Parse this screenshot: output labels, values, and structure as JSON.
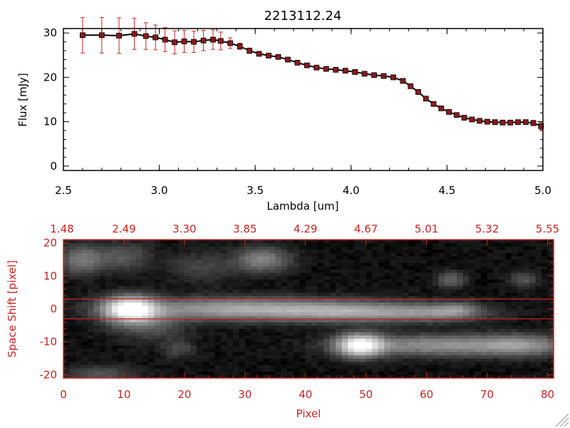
{
  "top_chart": {
    "title": "2213112.24",
    "xlabel": "Lambda [um]",
    "ylabel": "Flux [mJy]",
    "xlim": [
      2.5,
      5.0
    ],
    "ylim": [
      -1,
      31
    ],
    "xticks": [
      "2.5",
      "3.0",
      "3.5",
      "4.0",
      "4.5",
      "5.0"
    ],
    "xtick_values": [
      2.5,
      3.0,
      3.5,
      4.0,
      4.5,
      5.0
    ],
    "yticks": [
      "0",
      "10",
      "20",
      "30"
    ],
    "ytick_values": [
      0,
      10,
      20,
      30
    ],
    "line_color": "#000000",
    "marker_color": "#8b1a1a",
    "errorbar_color": "#cc2222"
  },
  "bottom_chart": {
    "xlabel": "Pixel",
    "ylabel": "Space Shift [pixel]",
    "xlim": [
      0,
      81
    ],
    "ylim": [
      -21,
      21
    ],
    "xticks": [
      "0",
      "10",
      "20",
      "30",
      "40",
      "50",
      "60",
      "70",
      "80"
    ],
    "xtick_values": [
      0,
      10,
      20,
      30,
      40,
      50,
      60,
      70,
      80
    ],
    "yticks": [
      "20",
      "10",
      "0",
      "-10",
      "-20"
    ],
    "ytick_values": [
      20,
      10,
      0,
      -10,
      -20
    ],
    "top_wavelength_ticks": [
      "1.48",
      "2.49",
      "3.30",
      "3.85",
      "4.29",
      "4.67",
      "5.01",
      "5.32",
      "5.55"
    ],
    "extraction_window": [
      -3,
      3
    ],
    "axis_color": "#cc2222"
  },
  "chart_data": [
    {
      "type": "line",
      "title": "2213112.24",
      "xlabel": "Lambda [um]",
      "ylabel": "Flux [mJy]",
      "xlim": [
        2.5,
        5.0
      ],
      "ylim": [
        -1,
        31
      ],
      "series": [
        {
          "x": [
            2.6,
            2.7,
            2.79,
            2.87,
            2.93,
            2.98,
            3.03,
            3.08,
            3.13,
            3.18,
            3.23,
            3.28,
            3.32,
            3.37,
            3.42,
            3.47,
            3.52,
            3.57,
            3.62,
            3.67,
            3.72,
            3.77,
            3.82,
            3.87,
            3.92,
            3.97,
            4.02,
            4.07,
            4.12,
            4.17,
            4.22,
            4.27,
            4.31,
            4.35,
            4.39,
            4.43,
            4.47,
            4.51,
            4.55,
            4.59,
            4.63,
            4.67,
            4.71,
            4.75,
            4.79,
            4.83,
            4.87,
            4.91,
            4.95,
            4.99
          ],
          "y": [
            29.5,
            29.5,
            29.4,
            29.8,
            29.3,
            29.0,
            28.5,
            27.9,
            28.1,
            28.0,
            28.3,
            28.5,
            28.2,
            27.7,
            27.0,
            26.0,
            25.3,
            24.9,
            24.6,
            24.0,
            23.3,
            22.7,
            22.2,
            21.9,
            21.7,
            21.5,
            21.2,
            20.8,
            20.5,
            20.3,
            20.0,
            19.2,
            18.0,
            16.7,
            15.2,
            14.0,
            13.0,
            12.2,
            11.5,
            10.9,
            10.5,
            10.2,
            10.0,
            9.9,
            9.8,
            9.8,
            9.9,
            9.9,
            9.7,
            9.0
          ],
          "yerr": [
            4.0,
            4.0,
            4.0,
            3.5,
            3.0,
            2.8,
            2.7,
            2.6,
            2.5,
            2.4,
            2.3,
            2.2,
            2.0,
            1.2,
            0.7,
            0.6,
            0.5,
            0.5,
            0.5,
            0.5,
            0.5,
            0.5,
            0.5,
            0.5,
            0.5,
            0.5,
            0.5,
            0.5,
            0.5,
            0.5,
            0.5,
            0.5,
            0.5,
            0.5,
            0.5,
            0.5,
            0.5,
            0.5,
            0.5,
            0.5,
            0.5,
            0.5,
            0.5,
            0.5,
            0.5,
            0.5,
            0.5,
            0.5,
            0.6,
            0.8
          ]
        }
      ]
    },
    {
      "type": "heatmap",
      "xlabel": "Pixel",
      "ylabel": "Space Shift [pixel]",
      "xlim": [
        0,
        81
      ],
      "ylim": [
        -21,
        21
      ],
      "extraction_window": [
        -3,
        3
      ],
      "sources": [
        {
          "x": 11,
          "y": 0,
          "peak": 1.0,
          "sx": 3.0,
          "sy": 2.6
        },
        {
          "x": 30,
          "y": 0,
          "peak": 0.55,
          "sx": 13,
          "sy": 2.3
        },
        {
          "x": 50,
          "y": -1,
          "peak": 0.42,
          "sx": 9,
          "sy": 2.0
        },
        {
          "x": 63,
          "y": -1,
          "peak": 0.28,
          "sx": 5,
          "sy": 1.8
        },
        {
          "x": 49,
          "y": -11,
          "peak": 0.9,
          "sx": 2.6,
          "sy": 2.4
        },
        {
          "x": 62,
          "y": -11,
          "peak": 0.45,
          "sx": 10,
          "sy": 2.2
        },
        {
          "x": 76,
          "y": -11,
          "peak": 0.35,
          "sx": 5,
          "sy": 2.2
        },
        {
          "x": 3,
          "y": 15,
          "peak": 0.35,
          "sx": 2.5,
          "sy": 3
        },
        {
          "x": 10,
          "y": 16,
          "peak": 0.22,
          "sx": 3,
          "sy": 3
        },
        {
          "x": 33,
          "y": 15,
          "peak": 0.4,
          "sx": 3,
          "sy": 2.5
        },
        {
          "x": 23,
          "y": 13,
          "peak": 0.15,
          "sx": 4,
          "sy": 3
        },
        {
          "x": 64,
          "y": 9,
          "peak": 0.28,
          "sx": 1.6,
          "sy": 1.6
        },
        {
          "x": 76,
          "y": 9,
          "peak": 0.22,
          "sx": 1.6,
          "sy": 1.6
        },
        {
          "x": 14,
          "y": -5,
          "peak": 0.22,
          "sx": 4,
          "sy": 3
        },
        {
          "x": 19,
          "y": -12,
          "peak": 0.15,
          "sx": 2,
          "sy": 2
        },
        {
          "x": 6,
          "y": -20,
          "peak": 0.2,
          "sx": 4,
          "sy": 2
        },
        {
          "x": 65,
          "y": 0,
          "peak": 0.18,
          "sx": 2,
          "sy": 1.5
        }
      ]
    }
  ]
}
